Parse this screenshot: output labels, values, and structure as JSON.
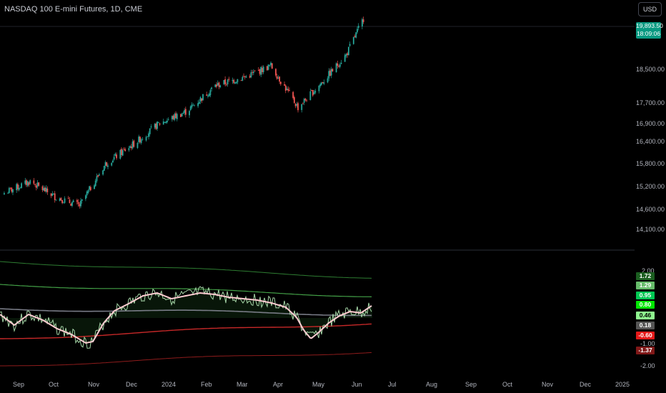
{
  "header": {
    "symbol": "NASDAQ 100 E-mini Futures, 1D, CME",
    "currency_button": "USD"
  },
  "price_axis": {
    "labels": [
      "18,500.00",
      "17,700.00",
      "16,900.00",
      "16,400.00",
      "15,800.00",
      "15,200.00",
      "14,600.00",
      "14,100.00"
    ],
    "last_price": "19,893.50",
    "countdown": "18:09:06"
  },
  "indicator_axis": {
    "labels": [
      "2.00",
      "-1.00",
      "-2.00"
    ],
    "badges": [
      {
        "text": "1.72",
        "bg": "#1b5e20",
        "fg": "#ffffff"
      },
      {
        "text": "1.29",
        "bg": "#66bb6a",
        "fg": "#ffffff"
      },
      {
        "text": "0.95",
        "bg": "#00c853",
        "fg": "#ffffff"
      },
      {
        "text": "0.80",
        "bg": "#00e600",
        "fg": "#ffffff"
      },
      {
        "text": "0.46",
        "bg": "#8ef58e",
        "fg": "#000000"
      },
      {
        "text": "0.18",
        "bg": "#555555",
        "fg": "#ffffff"
      },
      {
        "text": "-0.60",
        "bg": "#e51919",
        "fg": "#ffffff"
      },
      {
        "text": "-1.37",
        "bg": "#801818",
        "fg": "#ffffff"
      }
    ]
  },
  "time_axis": {
    "labels": [
      "Sep",
      "Oct",
      "Nov",
      "Dec",
      "2024",
      "Feb",
      "Mar",
      "Apr",
      "May",
      "Jun",
      "Jul",
      "Aug",
      "Sep",
      "Oct",
      "Nov",
      "Dec",
      "2025"
    ]
  },
  "colors": {
    "up": "#26a69a",
    "down": "#ef5350",
    "background": "#000000"
  },
  "chart_data": {
    "type": "candlestick",
    "series_close_anchors": [
      {
        "date": "2023-08-25",
        "close": 15100
      },
      {
        "date": "2023-09-15",
        "close": 15420
      },
      {
        "date": "2023-10-05",
        "close": 15000
      },
      {
        "date": "2023-10-25",
        "close": 14750
      },
      {
        "date": "2023-11-15",
        "close": 15900
      },
      {
        "date": "2023-12-10",
        "close": 16500
      },
      {
        "date": "2023-12-28",
        "close": 17000
      },
      {
        "date": "2024-01-20",
        "close": 17350
      },
      {
        "date": "2024-02-12",
        "close": 18050
      },
      {
        "date": "2024-03-08",
        "close": 18300
      },
      {
        "date": "2024-03-28",
        "close": 18600
      },
      {
        "date": "2024-04-19",
        "close": 17450
      },
      {
        "date": "2024-05-10",
        "close": 18200
      },
      {
        "date": "2024-05-28",
        "close": 18900
      },
      {
        "date": "2024-06-11",
        "close": 19893.5
      }
    ]
  }
}
